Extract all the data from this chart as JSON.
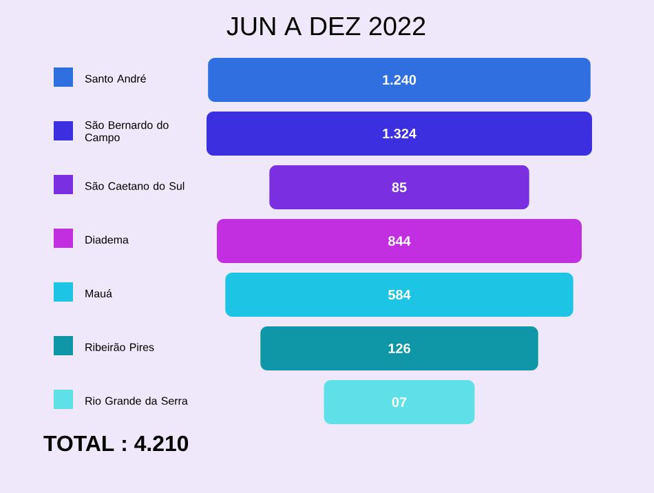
{
  "chart_data": {
    "type": "other",
    "title": "JUN A DEZ 2022",
    "categories": [
      "Santo André",
      "São Bernardo do Campo",
      "São Caetano do Sul",
      "Diadema",
      "Mauá",
      "Ribeirão Pires",
      "Rio Grande da Serra"
    ],
    "values": [
      1240,
      1324,
      85,
      844,
      584,
      126,
      7
    ],
    "value_labels": [
      "1.240",
      "1.324",
      "85",
      "844",
      "584",
      "126",
      "07"
    ],
    "colors": [
      "#2f6fe0",
      "#3b2fe0",
      "#7a2fe0",
      "#c22fe0",
      "#1ec4e4",
      "#0f97a8",
      "#5fe0e8"
    ],
    "annotations": [
      "TOTAL : 4.210"
    ]
  }
}
